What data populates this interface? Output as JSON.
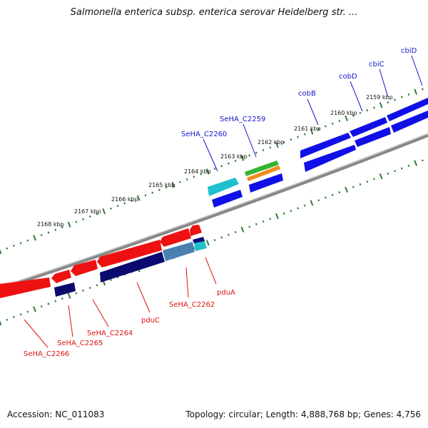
{
  "title": "Salmonella enterica subsp. enterica serovar Heidelberg str. ...",
  "footer": {
    "accession": "Accession: NC_011083",
    "stats": "Topology: circular; Length: 4,888,768 bp; Genes: 4,756"
  },
  "colors": {
    "backbone": "#888888",
    "tick": "#2e7d32",
    "forward_label": "#1515cc",
    "reverse_label": "#dd1111",
    "blue_gene": "#1010e6",
    "red_gene": "#ee1111",
    "navy_gene": "#0a0a70",
    "cyan_gene": "#1fbfcf",
    "steel_gene": "#4a7fb0",
    "green_gene": "#33b533",
    "orange_gene": "#f28a1a"
  },
  "ruler": [
    "2159 kbp",
    "2160 kbp",
    "2161 kbp",
    "2162 kbp",
    "2163 kbp",
    "2164 kbp",
    "2165 kbp",
    "2166 kbp",
    "2167 kbp",
    "2168 kbp"
  ],
  "forward_labels": [
    "cbiD",
    "cbiC",
    "cobD",
    "cobB",
    "SeHA_C2259",
    "SeHA_C2260"
  ],
  "reverse_labels": [
    "pduA",
    "SeHA_C2262",
    "pduC",
    "SeHA_C2264",
    "SeHA_C2265",
    "SeHA_C2266"
  ]
}
